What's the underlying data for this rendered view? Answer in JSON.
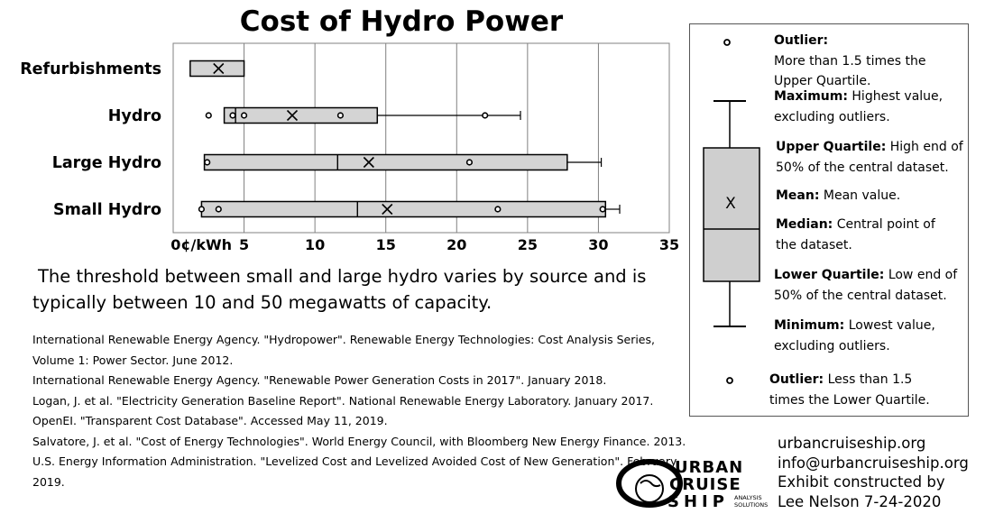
{
  "title": "Cost of Hydro Power",
  "threshold_note": "The threshold between small and large hydro varies by source and is typically between 10 and 50 megawatts of capacity.",
  "sources": [
    "International Renewable Energy Agency. \"Hydropower\". Renewable Energy Technologies: Cost Analysis Series, Volume 1: Power Sector. June 2012.",
    "International Renewable Energy Agency. \"Renewable Power Generation Costs in 2017\". January 2018.",
    "Logan, J. et al. \"Electricity Generation Baseline Report\". National Renewable Energy Laboratory. January 2017.",
    "OpenEI. \"Transparent Cost Database\". Accessed May 11, 2019.",
    "Salvatore, J. et al. \"Cost of Energy Technologies\". World Energy Council, with Bloomberg New Energy Finance. 2013.",
    "U.S. Energy Information Administration. \"Levelized Cost and Levelized Avoided Cost of New Generation\". February 2019."
  ],
  "legend": {
    "outlier_high_bold": "Outlier:",
    "outlier_high_text": "More than 1.5 times the Upper Quartile.",
    "maximum_bold": "Maximum:",
    "maximum_text": "Highest value, excluding outliers.",
    "upper_bold": "Upper Quartile:",
    "upper_text": "High end of 50% of the central dataset.",
    "mean_bold": "Mean:",
    "mean_text": "Mean value.",
    "median_bold": "Median:",
    "median_text": "Central point of the dataset.",
    "lower_bold": "Lower Quartile:",
    "lower_text": "Low end of 50% of the central dataset.",
    "minimum_bold": "Minimum:",
    "minimum_text": "Lowest value, excluding outliers.",
    "outlier_low_bold": "Outlier:",
    "outlier_low_text": "Less than 1.5 times the Lower Quartile.",
    "mean_symbol": "X"
  },
  "contact": {
    "site": "urbancruiseship.org",
    "email": "info@urbancruiseship.org",
    "credit_line1": "Exhibit constructed by",
    "credit_line2": "Lee Nelson 7-24-2020"
  },
  "logo": {
    "line1": "URBAN",
    "line2": "CRUISE",
    "line3": "SHIP",
    "sub1": "ANALYSIS",
    "sub2": "SOLUTIONS"
  },
  "chart_data": {
    "type": "box",
    "title": "Cost of Hydro Power",
    "xlim": [
      0,
      35
    ],
    "x_ticks": [
      0,
      5,
      10,
      15,
      20,
      25,
      30,
      35
    ],
    "x_tick_labels": [
      "0¢/kWh",
      "5",
      "10",
      "15",
      "20",
      "25",
      "30",
      "35"
    ],
    "grid": "vertical",
    "colors": {
      "box_fill": "#d4d4d4",
      "stroke": "#000000",
      "grid": "#808080"
    },
    "categories": [
      "Refurbishments",
      "Hydro",
      "Large Hydro",
      "Small Hydro"
    ],
    "boxes": [
      {
        "name": "Refurbishments",
        "min": 1.2,
        "q1": 1.2,
        "median": 1.2,
        "q3": 5.0,
        "max": 5.0,
        "mean": 3.2,
        "outliers": []
      },
      {
        "name": "Hydro",
        "min": 3.6,
        "q1": 3.6,
        "median": 4.4,
        "q3": 14.4,
        "max": 24.5,
        "mean": 8.4,
        "outliers": [
          2.5,
          4.2,
          5.0,
          11.8,
          22.0
        ]
      },
      {
        "name": "Large Hydro",
        "min": 2.2,
        "q1": 2.2,
        "median": 11.6,
        "q3": 27.8,
        "max": 30.2,
        "mean": 13.8,
        "outliers": [
          2.4,
          20.9
        ]
      },
      {
        "name": "Small Hydro",
        "min": 2.0,
        "q1": 2.0,
        "median": 13.0,
        "q3": 30.5,
        "max": 31.5,
        "mean": 15.1,
        "outliers": [
          2.0,
          3.2,
          22.9,
          30.3
        ]
      }
    ]
  }
}
